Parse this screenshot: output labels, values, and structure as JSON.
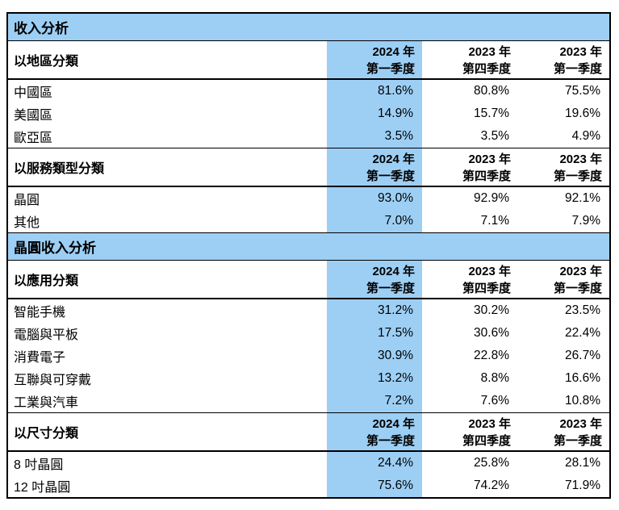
{
  "colors": {
    "highlight": "#9DCFF5",
    "border": "#000000",
    "text": "#000000",
    "background": "#ffffff"
  },
  "columns": {
    "quarters": [
      {
        "line1": "2024 年",
        "line2": "第一季度",
        "highlighted": true
      },
      {
        "line1": "2023 年",
        "line2": "第四季度",
        "highlighted": false
      },
      {
        "line1": "2023 年",
        "line2": "第一季度",
        "highlighted": false
      }
    ]
  },
  "sections": [
    {
      "type": "section-header",
      "title": "收入分析"
    },
    {
      "type": "subtable",
      "header": "以地區分類",
      "rows": [
        {
          "label": "中國區",
          "values": [
            "81.6%",
            "80.8%",
            "75.5%"
          ]
        },
        {
          "label": "美國區",
          "values": [
            "14.9%",
            "15.7%",
            "19.6%"
          ]
        },
        {
          "label": "歐亞區",
          "values": [
            "3.5%",
            "3.5%",
            "4.9%"
          ]
        }
      ]
    },
    {
      "type": "subtable",
      "header": "以服務類型分類",
      "rows": [
        {
          "label": "晶圓",
          "values": [
            "93.0%",
            "92.9%",
            "92.1%"
          ]
        },
        {
          "label": "其他",
          "values": [
            "7.0%",
            "7.1%",
            "7.9%"
          ]
        }
      ]
    },
    {
      "type": "section-header",
      "title": "晶圓收入分析"
    },
    {
      "type": "subtable",
      "header": "以應用分類",
      "rows": [
        {
          "label": "智能手機",
          "values": [
            "31.2%",
            "30.2%",
            "23.5%"
          ]
        },
        {
          "label": "電腦與平板",
          "values": [
            "17.5%",
            "30.6%",
            "22.4%"
          ]
        },
        {
          "label": "消費電子",
          "values": [
            "30.9%",
            "22.8%",
            "26.7%"
          ]
        },
        {
          "label": "互聯與可穿戴",
          "values": [
            "13.2%",
            "8.8%",
            "16.6%"
          ]
        },
        {
          "label": "工業與汽車",
          "values": [
            "7.2%",
            "7.6%",
            "10.8%"
          ]
        }
      ]
    },
    {
      "type": "subtable",
      "header": "以尺寸分類",
      "rows": [
        {
          "label": "8 吋晶圓",
          "values": [
            "24.4%",
            "25.8%",
            "28.1%"
          ]
        },
        {
          "label": "12 吋晶圓",
          "values": [
            "75.6%",
            "74.2%",
            "71.9%"
          ]
        }
      ]
    }
  ]
}
